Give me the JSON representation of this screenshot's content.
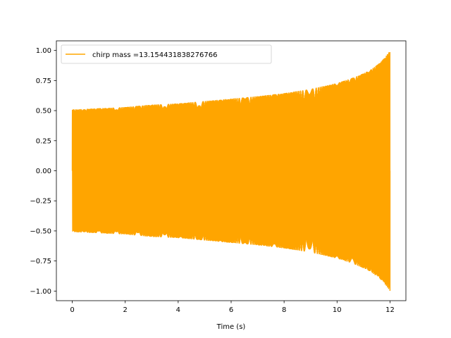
{
  "chart_data": {
    "type": "line",
    "title": "",
    "xlabel": "Time (s)",
    "ylabel": "",
    "xlim": [
      -0.6,
      12.6
    ],
    "ylim": [
      -1.08,
      1.08
    ],
    "xticks": [
      0,
      2,
      4,
      6,
      8,
      10,
      12
    ],
    "xtick_labels": [
      "0",
      "2",
      "4",
      "6",
      "8",
      "10",
      "12"
    ],
    "yticks": [
      -1.0,
      -0.75,
      -0.5,
      -0.25,
      0.0,
      0.25,
      0.5,
      0.75,
      1.0
    ],
    "ytick_labels": [
      "−1.00",
      "−0.75",
      "−0.50",
      "−0.25",
      "0.00",
      "0.25",
      "0.50",
      "0.75",
      "1.00"
    ],
    "grid": false,
    "legend_position": "top-left",
    "series": [
      {
        "name": "chirp mass =13.154431838276766",
        "color": "#ffa500",
        "x": [
          0,
          1,
          2,
          3,
          4,
          5,
          6,
          7,
          8,
          9,
          9.5,
          10,
          10.5,
          11,
          11.3,
          11.6,
          11.8,
          12
        ],
        "envelope": [
          0.51,
          0.52,
          0.53,
          0.55,
          0.56,
          0.58,
          0.6,
          0.62,
          0.645,
          0.68,
          0.705,
          0.73,
          0.765,
          0.81,
          0.845,
          0.895,
          0.94,
          1.0
        ]
      }
    ]
  }
}
